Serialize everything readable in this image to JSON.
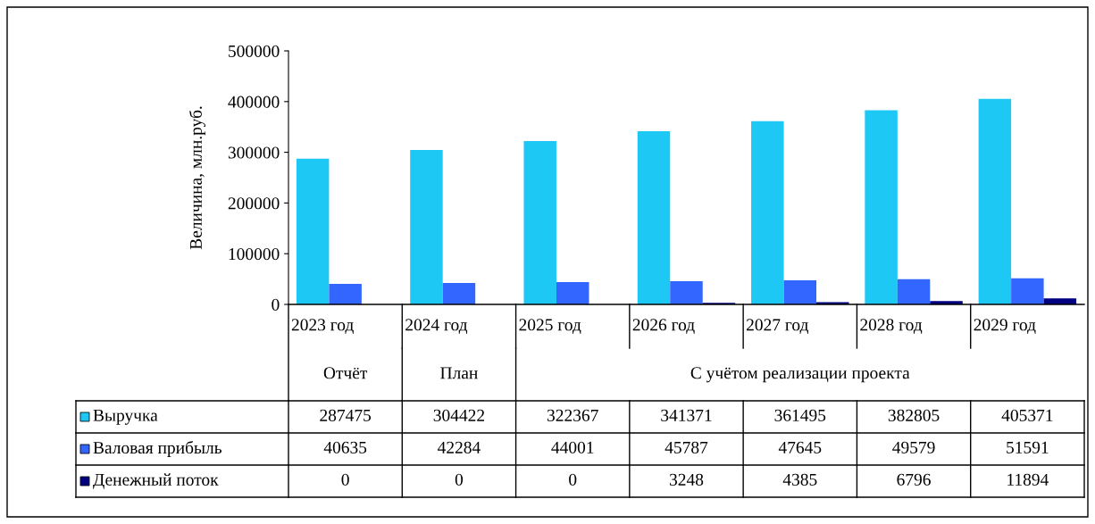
{
  "chart_data": {
    "type": "bar",
    "ylabel": "Величина, млн.руб.",
    "categories": [
      "2023 год",
      "2024 год",
      "2025 год",
      "2026 год",
      "2027 год",
      "2028 год",
      "2029 год"
    ],
    "series": [
      {
        "name": "Выручка",
        "color": "#1ec8f5",
        "values": [
          287475,
          304422,
          322367,
          341371,
          361495,
          382805,
          405371
        ]
      },
      {
        "name": "Валовая прибыль",
        "color": "#3366ff",
        "values": [
          40635,
          42284,
          44001,
          45787,
          47645,
          49579,
          51591
        ]
      },
      {
        "name": "Денежный поток",
        "color": "#000080",
        "values": [
          0,
          0,
          0,
          3248,
          4385,
          6796,
          11894
        ]
      }
    ],
    "annotations": [
      "Отчёт",
      "План",
      "С учётом реализации проекта"
    ],
    "ylim": [
      0,
      500000
    ],
    "yticks": [
      0,
      100000,
      200000,
      300000,
      400000,
      500000
    ],
    "grid": false,
    "legend": "bottom",
    "data_labels": true
  }
}
